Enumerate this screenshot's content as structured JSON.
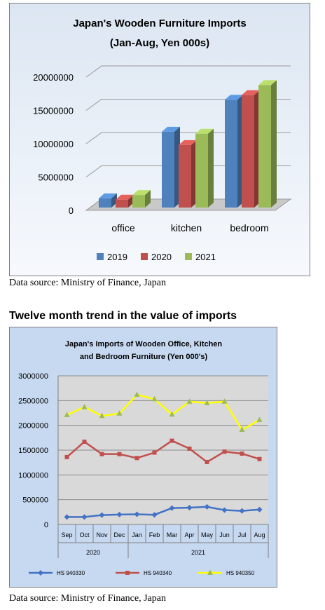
{
  "chart_data": [
    {
      "type": "bar",
      "title": "Japan's Wooden Furniture Imports",
      "subtitle": "(Jan-Aug, Yen 000s)",
      "categories": [
        "office",
        "kitchen",
        "bedroom"
      ],
      "series": [
        {
          "name": "2019",
          "color": "#4f81bd",
          "values": [
            1800000,
            11800000,
            16600000
          ]
        },
        {
          "name": "2020",
          "color": "#c0504d",
          "values": [
            1600000,
            9800000,
            17300000
          ]
        },
        {
          "name": "2021",
          "color": "#9bbb59",
          "values": [
            2300000,
            11500000,
            18800000
          ]
        }
      ],
      "yticks": [
        "0",
        "5000000",
        "10000000",
        "15000000",
        "20000000"
      ],
      "ylim": [
        0,
        20000000
      ],
      "legend": "bottom",
      "grid": true
    },
    {
      "type": "line",
      "title": "Japan's Imports of Wooden Office, Kitchen",
      "subtitle": "and Bedroom Furniture (Yen 000's)",
      "x": [
        "Sep",
        "Oct",
        "Nov",
        "Dec",
        "Jan",
        "Feb",
        "Mar",
        "Apr",
        "May",
        "Jun",
        "Jul",
        "Aug"
      ],
      "year_groups": [
        {
          "label": "2020",
          "span": 4
        },
        {
          "label": "2021",
          "span": 8
        }
      ],
      "series": [
        {
          "name": "HS 940330",
          "color": "#4472c4",
          "marker": "diamond",
          "values": [
            150000,
            150000,
            190000,
            200000,
            205000,
            195000,
            330000,
            340000,
            355000,
            290000,
            275000,
            300000
          ]
        },
        {
          "name": "HS 940340",
          "color": "#c0504d",
          "marker": "square",
          "values": [
            1360000,
            1670000,
            1420000,
            1420000,
            1340000,
            1450000,
            1690000,
            1530000,
            1260000,
            1470000,
            1430000,
            1320000
          ]
        },
        {
          "name": "HS 940350",
          "color": "#ffff00",
          "marker": "triangle",
          "values": [
            2210000,
            2370000,
            2190000,
            2240000,
            2620000,
            2530000,
            2220000,
            2480000,
            2450000,
            2480000,
            1910000,
            2110000
          ]
        }
      ],
      "yticks": [
        "0",
        "500000",
        "1000000",
        "1500000",
        "2000000",
        "2500000",
        "3000000"
      ],
      "ylim": [
        0,
        3000000
      ],
      "legend": "bottom",
      "grid": true
    }
  ],
  "source_1": "Data source: Ministry of Finance, Japan",
  "heading": "Twelve month trend in the value of imports",
  "source_2": "Data source: Ministry of Finance, Japan"
}
